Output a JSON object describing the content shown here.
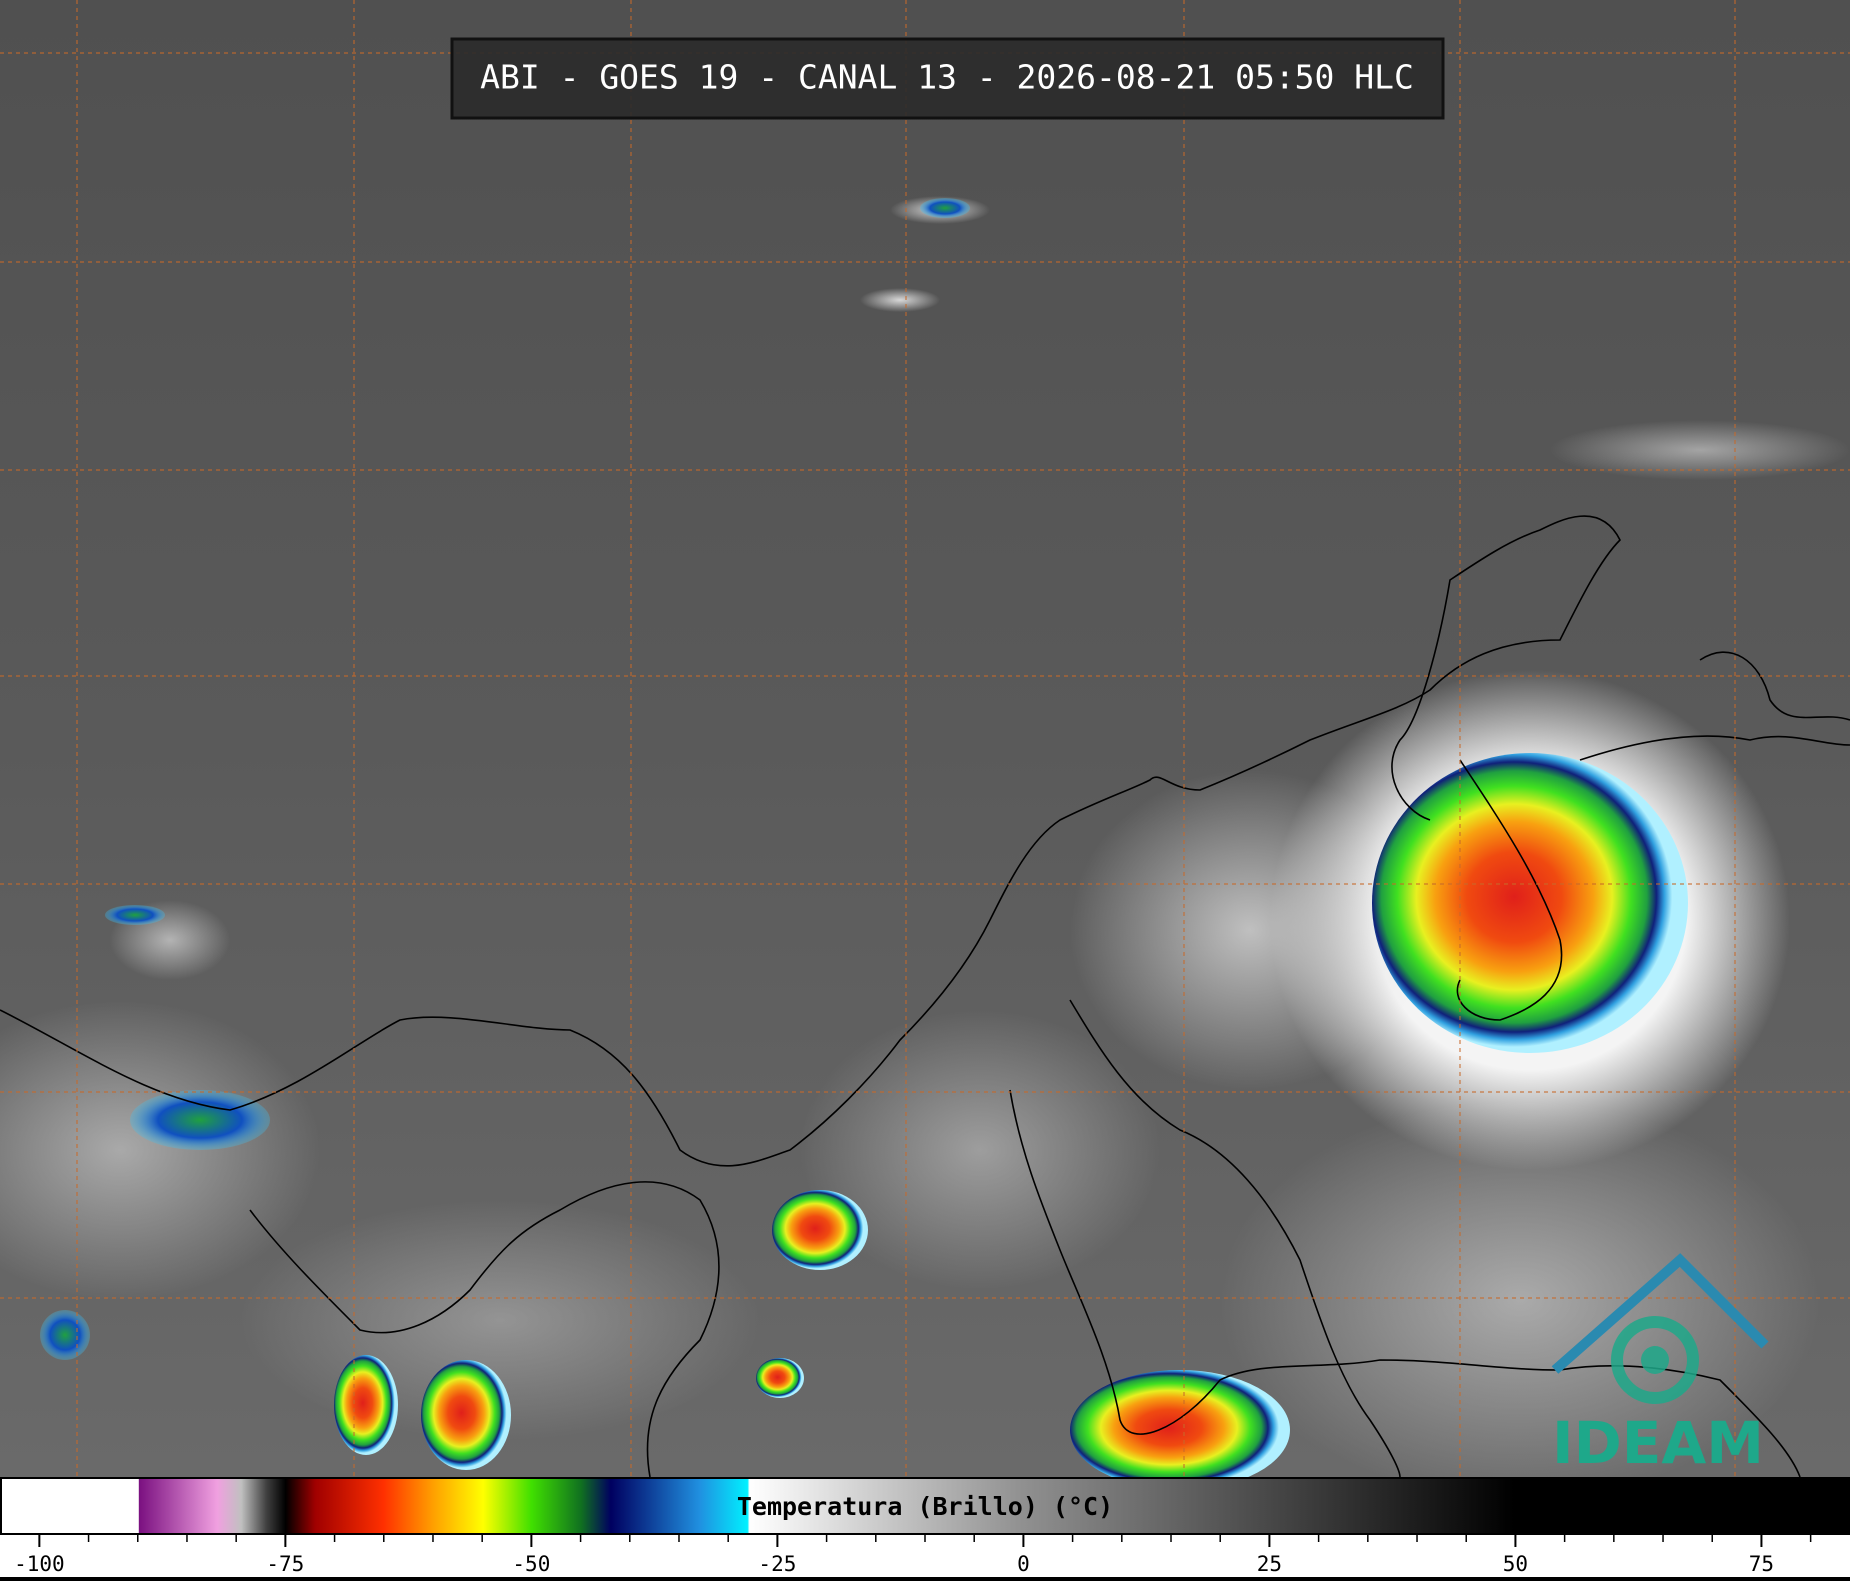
{
  "header": {
    "title": "ABI - GOES 19 - CANAL 13 - 2026-08-21 05:50 HLC"
  },
  "colorbar": {
    "label": "Temperatura (Brillo) (°C)",
    "range": [
      -104,
      84
    ],
    "ticks": [
      -100,
      -75,
      -50,
      -25,
      0,
      25,
      50,
      75
    ],
    "minor_ticks": [
      -95,
      -90,
      -85,
      -80,
      -70,
      -65,
      -60,
      -55,
      -45,
      -40,
      -35,
      -30,
      -20,
      -15,
      -10,
      -5,
      5,
      10,
      15,
      20,
      30,
      35,
      40,
      45,
      55,
      60,
      65,
      70,
      80
    ]
  },
  "logo": {
    "text": "IDEAM"
  }
}
